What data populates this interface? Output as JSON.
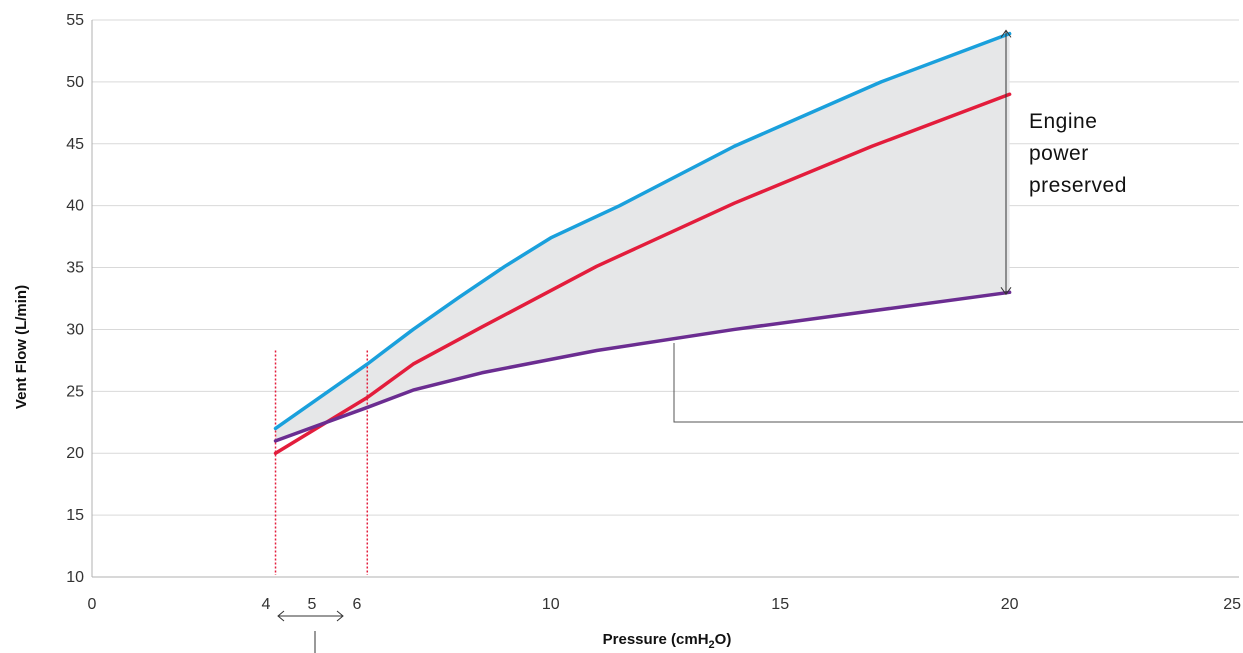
{
  "chart_data": {
    "type": "line",
    "xlabel": "Pressure (cmH",
    "xlabel_sub": "2",
    "xlabel_end": "O)",
    "ylabel": "Vent Flow (L/min)",
    "xlim": [
      0,
      25
    ],
    "ylim": [
      10,
      55
    ],
    "x_ticks": [
      0,
      10,
      15,
      20,
      25
    ],
    "y_ticks": [
      10,
      15,
      20,
      25,
      30,
      35,
      40,
      45,
      50,
      55
    ],
    "grid": "horizontal",
    "series": [
      {
        "color": "#1aa0dc",
        "points": [
          [
            4,
            22
          ],
          [
            6,
            27.2
          ],
          [
            7,
            30
          ],
          [
            8,
            32.6
          ],
          [
            9,
            35.1
          ],
          [
            10,
            37.4
          ],
          [
            11.5,
            40
          ],
          [
            14,
            44.8
          ],
          [
            17.2,
            50
          ],
          [
            20,
            53.9
          ]
        ]
      },
      {
        "color": "#e31d3c",
        "points": [
          [
            4,
            20
          ],
          [
            6,
            24.5
          ],
          [
            7,
            27.2
          ],
          [
            8.5,
            30.2
          ],
          [
            11,
            35.1
          ],
          [
            14,
            40.2
          ],
          [
            17,
            44.8
          ],
          [
            20,
            49
          ]
        ]
      },
      {
        "color": "#6b2d91",
        "points": [
          [
            4,
            21
          ],
          [
            6,
            23.7
          ],
          [
            7,
            25.1
          ],
          [
            8.5,
            26.5
          ],
          [
            11,
            28.3
          ],
          [
            14,
            30
          ],
          [
            17,
            31.5
          ],
          [
            20,
            33
          ]
        ]
      }
    ],
    "shaded_region": {
      "between": [
        "blue",
        "purple"
      ],
      "color": "#e6e7e8"
    },
    "annotations": {
      "engine_text": [
        "Engine",
        "power",
        "preserved"
      ],
      "engine_range": [
        33,
        54
      ],
      "marker_left": "4",
      "marker_mid": "5",
      "marker_right": "6",
      "marker_color": "#e31d3c",
      "marker_top": 28.3
    }
  }
}
